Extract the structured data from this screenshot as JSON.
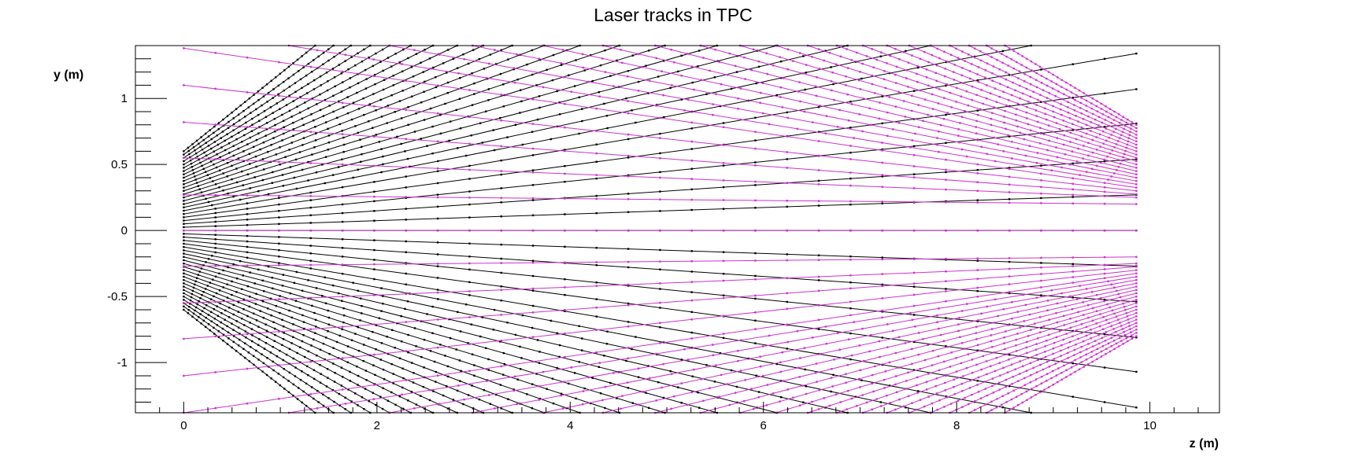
{
  "chart_data": {
    "type": "line",
    "title": "Laser tracks in TPC",
    "xlabel": "z (m)",
    "ylabel": "y (m)",
    "xlim": [
      -0.5,
      10.72
    ],
    "ylim": [
      -1.38,
      1.4
    ],
    "xticks": [
      0,
      2,
      4,
      6,
      8,
      10
    ],
    "yticks": [
      -1,
      -0.5,
      0,
      0.5,
      1
    ],
    "xtick_labels": [
      "0",
      "2",
      "4",
      "6",
      "8",
      "10"
    ],
    "ytick_labels": [
      "-1",
      "-0.5",
      "0",
      "0.5",
      "1"
    ],
    "grid": false,
    "legend": "none",
    "colors": {
      "series_a": "#000000",
      "series_b": "#cc33cc",
      "frame": "#000000"
    },
    "series": [
      {
        "color": "#000000",
        "description": "fan of straight tracks; each track from (z=0,y0) to (z_end,y_end)",
        "tracks": [
          [
            0,
            0.6,
            1.36,
            1.4
          ],
          [
            0,
            0.575,
            1.55,
            1.4
          ],
          [
            0,
            0.55,
            1.73,
            1.4
          ],
          [
            0,
            0.525,
            1.93,
            1.4
          ],
          [
            0,
            0.5,
            2.13,
            1.4
          ],
          [
            0,
            0.475,
            2.35,
            1.4
          ],
          [
            0,
            0.45,
            2.58,
            1.4
          ],
          [
            0,
            0.425,
            2.83,
            1.4
          ],
          [
            0,
            0.4,
            3.1,
            1.4
          ],
          [
            0,
            0.375,
            3.4,
            1.4
          ],
          [
            0,
            0.35,
            3.73,
            1.4
          ],
          [
            0,
            0.325,
            4.1,
            1.4
          ],
          [
            0,
            0.3,
            4.51,
            1.4
          ],
          [
            0,
            0.275,
            4.98,
            1.4
          ],
          [
            0,
            0.25,
            5.52,
            1.4
          ],
          [
            0,
            0.225,
            6.14,
            1.4
          ],
          [
            0,
            0.2,
            6.87,
            1.4
          ],
          [
            0,
            0.175,
            7.73,
            1.4
          ],
          [
            0,
            0.15,
            8.77,
            1.4
          ],
          [
            0,
            0.125,
            9.86,
            1.34
          ],
          [
            0,
            0.1,
            9.86,
            1.07
          ],
          [
            0,
            0.075,
            9.86,
            0.81
          ],
          [
            0,
            0.05,
            9.86,
            0.54
          ],
          [
            0,
            0.025,
            9.86,
            0.27
          ],
          [
            0,
            0.0,
            9.86,
            0.0
          ],
          [
            0,
            -0.025,
            9.86,
            -0.27
          ],
          [
            0,
            -0.05,
            9.86,
            -0.54
          ],
          [
            0,
            -0.075,
            9.86,
            -0.81
          ],
          [
            0,
            -0.1,
            9.86,
            -1.07
          ],
          [
            0,
            -0.125,
            9.86,
            -1.34
          ],
          [
            0,
            -0.15,
            8.77,
            -1.38
          ],
          [
            0,
            -0.175,
            7.73,
            -1.38
          ],
          [
            0,
            -0.2,
            6.87,
            -1.38
          ],
          [
            0,
            -0.225,
            6.14,
            -1.38
          ],
          [
            0,
            -0.25,
            5.52,
            -1.38
          ],
          [
            0,
            -0.275,
            4.98,
            -1.38
          ],
          [
            0,
            -0.3,
            4.51,
            -1.38
          ],
          [
            0,
            -0.325,
            4.1,
            -1.38
          ],
          [
            0,
            -0.35,
            3.73,
            -1.38
          ],
          [
            0,
            -0.375,
            3.4,
            -1.38
          ],
          [
            0,
            -0.4,
            3.1,
            -1.38
          ],
          [
            0,
            -0.425,
            2.83,
            -1.38
          ],
          [
            0,
            -0.45,
            2.58,
            -1.38
          ],
          [
            0,
            -0.475,
            2.35,
            -1.38
          ],
          [
            0,
            -0.5,
            2.13,
            -1.38
          ],
          [
            0,
            -0.525,
            1.93,
            -1.38
          ],
          [
            0,
            -0.55,
            1.73,
            -1.38
          ],
          [
            0,
            -0.575,
            1.55,
            -1.38
          ],
          [
            0,
            -0.6,
            1.36,
            -1.38
          ]
        ]
      },
      {
        "color": "#cc33cc",
        "description": "mirrored fan from z≈9.86; each track from (9.86,y0) to (z_end,y_end)",
        "tracks": [
          [
            9.86,
            0.8,
            8.5,
            1.4
          ],
          [
            9.86,
            0.775,
            8.31,
            1.4
          ],
          [
            9.86,
            0.75,
            8.13,
            1.4
          ],
          [
            9.86,
            0.725,
            7.93,
            1.4
          ],
          [
            9.86,
            0.7,
            7.73,
            1.4
          ],
          [
            9.86,
            0.675,
            7.51,
            1.4
          ],
          [
            9.86,
            0.65,
            7.28,
            1.4
          ],
          [
            9.86,
            0.625,
            7.03,
            1.4
          ],
          [
            9.86,
            0.6,
            6.76,
            1.4
          ],
          [
            9.86,
            0.575,
            6.46,
            1.4
          ],
          [
            9.86,
            0.55,
            6.13,
            1.4
          ],
          [
            9.86,
            0.525,
            5.76,
            1.4
          ],
          [
            9.86,
            0.5,
            5.35,
            1.4
          ],
          [
            9.86,
            0.475,
            4.88,
            1.4
          ],
          [
            9.86,
            0.45,
            4.34,
            1.4
          ],
          [
            9.86,
            0.425,
            3.72,
            1.4
          ],
          [
            9.86,
            0.4,
            2.99,
            1.4
          ],
          [
            9.86,
            0.375,
            2.13,
            1.4
          ],
          [
            9.86,
            0.35,
            1.09,
            1.4
          ],
          [
            9.86,
            0.325,
            0,
            1.38
          ],
          [
            9.86,
            0.3,
            0,
            1.1
          ],
          [
            9.86,
            0.275,
            0,
            0.82
          ],
          [
            9.86,
            0.25,
            0,
            0.55
          ],
          [
            9.86,
            0.2,
            0,
            0.27
          ],
          [
            9.86,
            0.0,
            0,
            0.0
          ],
          [
            9.86,
            -0.2,
            0,
            -0.27
          ],
          [
            9.86,
            -0.25,
            0,
            -0.55
          ],
          [
            9.86,
            -0.275,
            0,
            -0.82
          ],
          [
            9.86,
            -0.3,
            0,
            -1.1
          ],
          [
            9.86,
            -0.325,
            0,
            -1.38
          ],
          [
            9.86,
            -0.35,
            1.09,
            -1.38
          ],
          [
            9.86,
            -0.375,
            2.13,
            -1.38
          ],
          [
            9.86,
            -0.4,
            2.99,
            -1.38
          ],
          [
            9.86,
            -0.425,
            3.72,
            -1.38
          ],
          [
            9.86,
            -0.45,
            4.34,
            -1.38
          ],
          [
            9.86,
            -0.475,
            4.88,
            -1.38
          ],
          [
            9.86,
            -0.5,
            5.35,
            -1.38
          ],
          [
            9.86,
            -0.525,
            5.76,
            -1.38
          ],
          [
            9.86,
            -0.55,
            6.13,
            -1.38
          ],
          [
            9.86,
            -0.575,
            6.46,
            -1.38
          ],
          [
            9.86,
            -0.6,
            6.76,
            -1.38
          ],
          [
            9.86,
            -0.625,
            7.03,
            -1.38
          ],
          [
            9.86,
            -0.65,
            7.28,
            -1.38
          ],
          [
            9.86,
            -0.675,
            7.51,
            -1.38
          ],
          [
            9.86,
            -0.7,
            7.73,
            -1.38
          ],
          [
            9.86,
            -0.725,
            7.93,
            -1.38
          ],
          [
            9.86,
            -0.75,
            8.13,
            -1.38
          ],
          [
            9.86,
            -0.775,
            8.31,
            -1.38
          ],
          [
            9.86,
            -0.8,
            8.5,
            -1.38
          ]
        ]
      }
    ]
  }
}
